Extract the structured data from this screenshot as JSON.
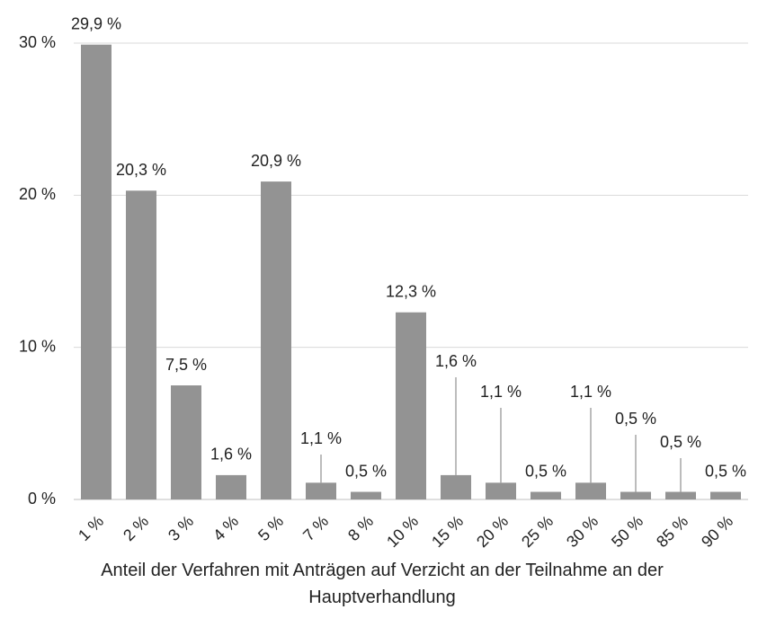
{
  "chart_data": {
    "type": "bar",
    "x_label": "Anteil der Verfahren mit Anträgen auf Verzicht an der Teilnahme an der Hauptverhandlung",
    "categories": [
      "1 %",
      "2 %",
      "3 %",
      "4 %",
      "5 %",
      "7 %",
      "8 %",
      "10 %",
      "15 %",
      "20 %",
      "25 %",
      "30 %",
      "50 %",
      "85 %",
      "90 %"
    ],
    "values": [
      29.9,
      20.3,
      7.5,
      1.6,
      20.9,
      1.1,
      0.5,
      12.3,
      1.6,
      1.1,
      0.5,
      1.1,
      0.5,
      0.5,
      0.5
    ],
    "value_labels": [
      "29,9 %",
      "20,3 %",
      "7,5 %",
      "1,6 %",
      "20,9 %",
      "1,1 %",
      "0,5 %",
      "12,3 %",
      "1,6 %",
      "1,1 %",
      "0,5 %",
      "1,1 %",
      "0,5 %",
      "0,5 %",
      "0,5 %"
    ],
    "color": "#939393",
    "ylim": [
      0,
      30
    ],
    "yticks": [
      {
        "value": 0,
        "label": "0 %"
      },
      {
        "value": 10,
        "label": "10 %"
      },
      {
        "value": 20,
        "label": "20 %"
      },
      {
        "value": 30,
        "label": "30 %"
      }
    ],
    "grid": true
  }
}
